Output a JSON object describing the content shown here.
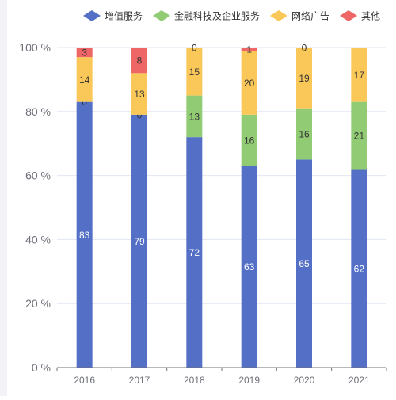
{
  "chart_data": {
    "type": "bar",
    "stacked": true,
    "categories": [
      "2016",
      "2017",
      "2018",
      "2019",
      "2020",
      "2021"
    ],
    "series": [
      {
        "name": "增值服务",
        "color": "#5470c6",
        "values": [
          83,
          79,
          72,
          63,
          65,
          62
        ]
      },
      {
        "name": "金融科技及企业服务",
        "color": "#91cc75",
        "values": [
          0,
          0,
          13,
          16,
          16,
          21
        ]
      },
      {
        "name": "网络广告",
        "color": "#fac858",
        "values": [
          14,
          13,
          15,
          20,
          19,
          17
        ]
      },
      {
        "name": "其他",
        "color": "#ee6666",
        "values": [
          3,
          8,
          0,
          1,
          0,
          0
        ]
      }
    ],
    "labels": {
      "增值服务": [
        "83",
        "79",
        "72",
        "63",
        "65",
        "62"
      ],
      "金融科技及企业服务": [
        "0",
        "0",
        "13",
        "16",
        "16",
        "21"
      ],
      "网络广告": [
        "14",
        "13",
        "15",
        "20",
        "19",
        "17"
      ],
      "其他": [
        "3",
        "8",
        "0",
        "1",
        "0",
        ""
      ]
    },
    "ylim": [
      0,
      100
    ],
    "yticks": [
      "0 %",
      "20 %",
      "40 %",
      "60 %",
      "80 %",
      "100 %"
    ],
    "grid": true,
    "legend_position": "top-right"
  }
}
